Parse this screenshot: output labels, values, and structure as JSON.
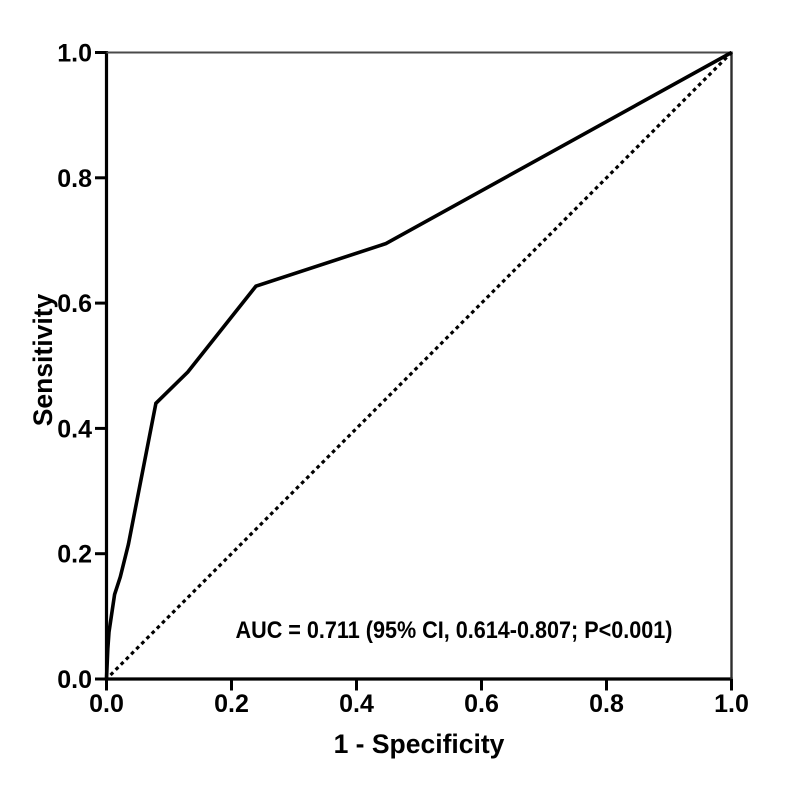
{
  "chart_data": {
    "type": "line",
    "variant": "roc-curve",
    "title": "",
    "xlabel": "1 - Specificity",
    "ylabel": "Sensitivity",
    "xlim": [
      0.0,
      1.0
    ],
    "ylim": [
      0.0,
      1.0
    ],
    "x_ticks": [
      "0.0",
      "0.2",
      "0.4",
      "0.6",
      "0.8",
      "1.0"
    ],
    "y_ticks": [
      "0.0",
      "0.2",
      "0.4",
      "0.6",
      "0.8",
      "1.0"
    ],
    "grid": false,
    "legend": "none",
    "annotation": {
      "text": "AUC = 0.711 (95% CI, 0.614-0.807; P<0.001)",
      "auc": 0.711,
      "ci_95": [
        0.614,
        0.807
      ],
      "p_value": "<0.001"
    },
    "series": [
      {
        "name": "roc-curve",
        "line_style": "solid",
        "color": "#000000",
        "points": [
          [
            0.0,
            0.0
          ],
          [
            0.002,
            0.048
          ],
          [
            0.004,
            0.075
          ],
          [
            0.013,
            0.135
          ],
          [
            0.022,
            0.163
          ],
          [
            0.035,
            0.215
          ],
          [
            0.079,
            0.44
          ],
          [
            0.13,
            0.49
          ],
          [
            0.239,
            0.627
          ],
          [
            0.447,
            0.695
          ],
          [
            1.0,
            1.0
          ]
        ]
      },
      {
        "name": "chance-diagonal",
        "line_style": "dotted",
        "color": "#000000",
        "points": [
          [
            0.0,
            0.0
          ],
          [
            1.0,
            1.0
          ]
        ]
      }
    ],
    "colors": {
      "background": "#ffffff",
      "axis": "#000000",
      "frame_top": "#4a4a4a",
      "frame_right": "#2e2e2e",
      "text": "#000000"
    }
  }
}
